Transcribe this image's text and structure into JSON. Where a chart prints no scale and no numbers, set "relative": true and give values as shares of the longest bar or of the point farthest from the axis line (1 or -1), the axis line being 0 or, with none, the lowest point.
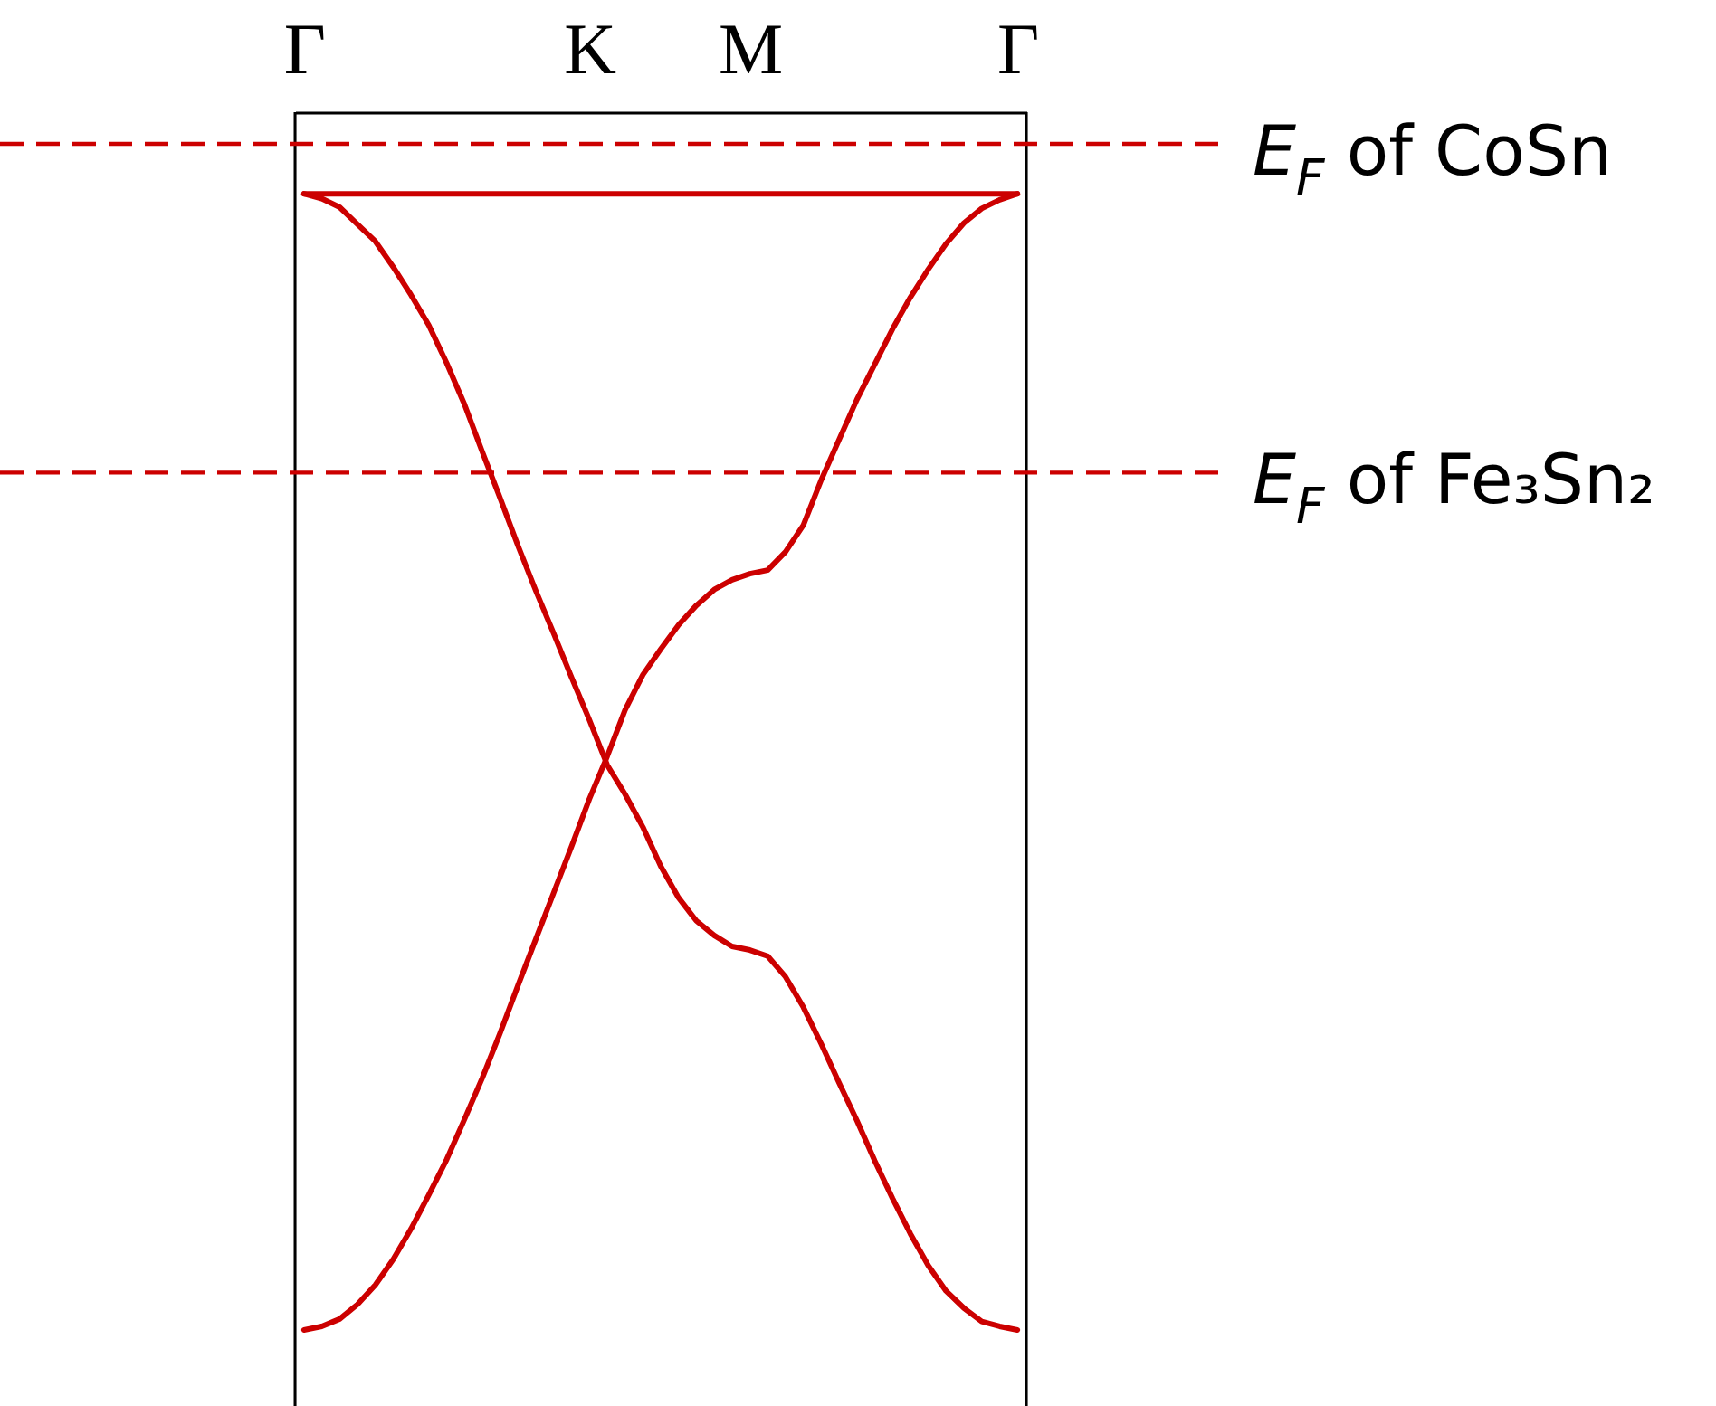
{
  "chart_data": {
    "type": "line",
    "relative": true,
    "tick_labels": "x",
    "categories": [
      "Γ",
      null,
      null,
      null,
      null,
      null,
      null,
      null,
      null,
      null,
      null,
      null,
      null,
      null,
      null,
      null,
      "K",
      null,
      null,
      null,
      null,
      null,
      null,
      null,
      null,
      "M",
      null,
      null,
      null,
      null,
      null,
      null,
      null,
      null,
      null,
      null,
      null,
      null,
      null,
      null,
      "Γ"
    ],
    "series": [
      {
        "color": "#cc0000",
        "values": [
          -0.067,
          -0.067,
          -0.067,
          -0.067,
          -0.067,
          -0.067,
          -0.067,
          -0.067,
          -0.067,
          -0.067,
          -0.067,
          -0.067,
          -0.067,
          -0.067,
          -0.067,
          -0.067,
          -0.067,
          -0.067,
          -0.067,
          -0.067,
          -0.067,
          -0.067,
          -0.067,
          -0.067,
          -0.067,
          -0.067,
          -0.067,
          -0.067,
          -0.067,
          -0.067,
          -0.067,
          -0.067,
          -0.067,
          -0.067,
          -0.067,
          -0.067,
          -0.067,
          -0.067,
          -0.067,
          -0.067,
          -0.067
        ]
      },
      {
        "color": "#cc0000",
        "values": [
          -0.067,
          -0.071,
          -0.078,
          -0.092,
          -0.106,
          -0.127,
          -0.15,
          -0.175,
          -0.206,
          -0.24,
          -0.279,
          -0.317,
          -0.356,
          -0.393,
          -0.428,
          -0.464,
          -0.499,
          -0.536,
          -0.56,
          -0.587,
          -0.619,
          -0.645,
          -0.664,
          -0.676,
          -0.685,
          -0.688,
          -0.693,
          -0.71,
          -0.735,
          -0.765,
          -0.797,
          -0.828,
          -0.861,
          -0.892,
          -0.921,
          -0.947,
          -0.968,
          -0.982,
          -0.993,
          -0.997,
          -1
        ]
      },
      {
        "color": "#cc0000",
        "values": [
          -1,
          -0.997,
          -0.991,
          -0.979,
          -0.963,
          -0.942,
          -0.917,
          -0.889,
          -0.86,
          -0.827,
          -0.793,
          -0.756,
          -0.717,
          -0.679,
          -0.641,
          -0.603,
          -0.564,
          -0.529,
          -0.491,
          -0.462,
          -0.441,
          -0.421,
          -0.405,
          -0.392,
          -0.384,
          -0.379,
          -0.376,
          -0.361,
          -0.339,
          -0.302,
          -0.269,
          -0.236,
          -0.207,
          -0.178,
          -0.152,
          -0.129,
          -0.108,
          -0.091,
          -0.079,
          -0.072,
          -0.067
        ]
      }
    ],
    "ref_lines": [
      {
        "axis": "y",
        "value": -0.026,
        "label": "E$_{F}$ of CoSn",
        "color": "#cc0000",
        "line_style": "dashed"
      },
      {
        "axis": "y",
        "value": -0.296,
        "label": "E$_{F}$ of Fe₃Sn₂",
        "color": "#cc0000",
        "line_style": "dashed"
      }
    ]
  }
}
